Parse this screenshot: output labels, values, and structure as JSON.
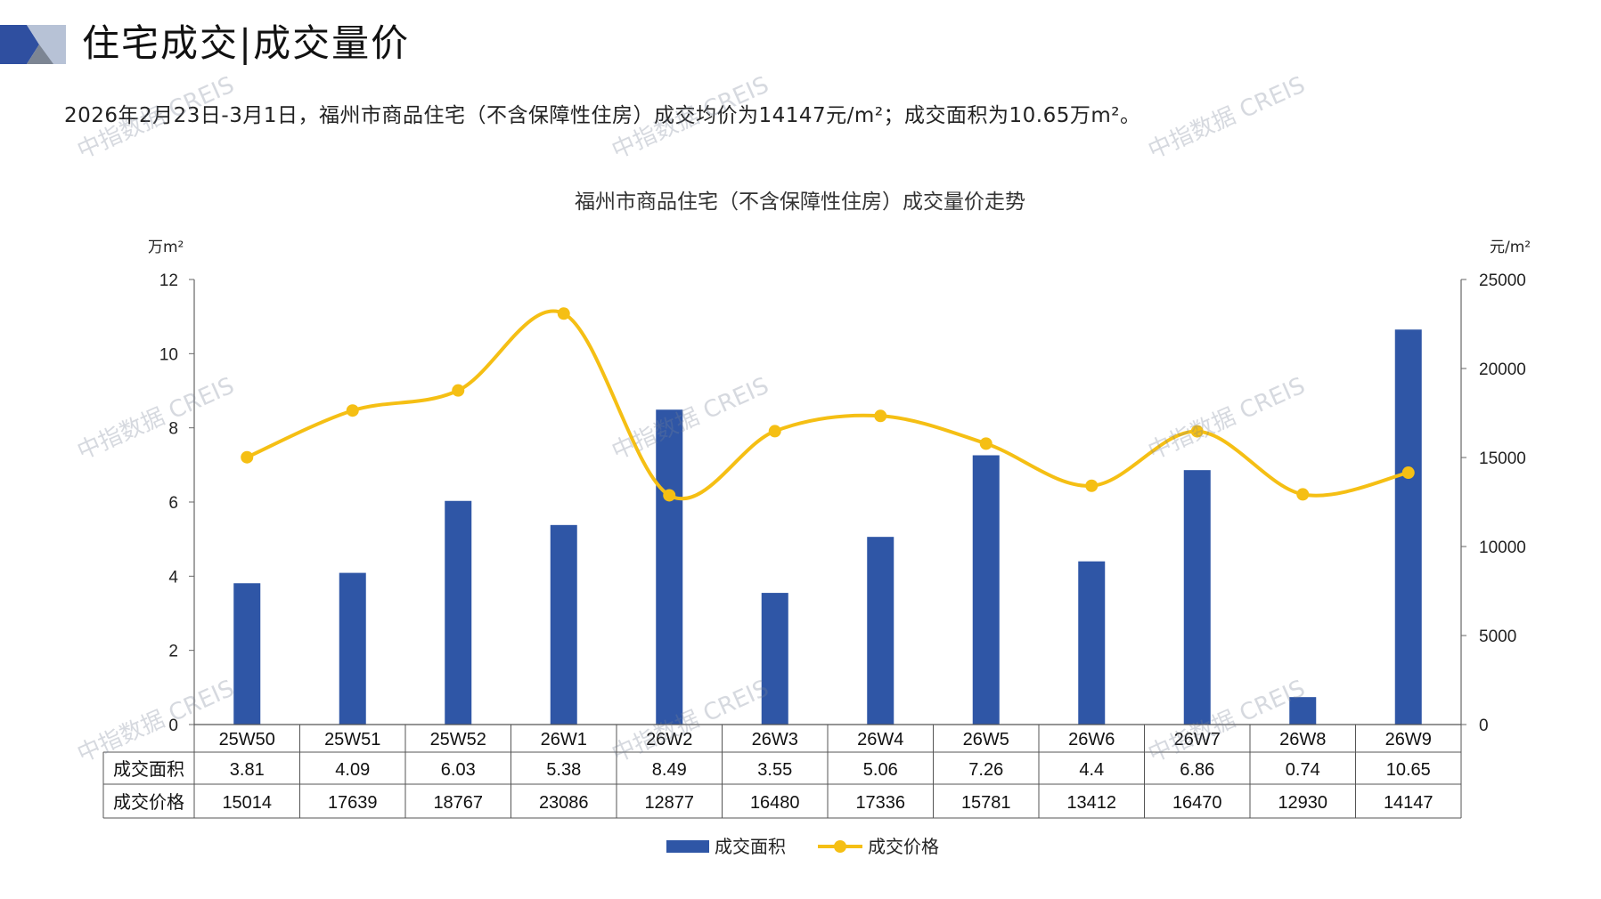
{
  "header": {
    "title": "住宅成交|成交量价"
  },
  "summary": {
    "text": "2026年2月23日-3月1日，福州市商品住宅（不含保障性住房）成交均价为14147元/m²；成交面积为10.65万m²。"
  },
  "watermark": {
    "text": "中指数据 CREIS"
  },
  "colors": {
    "bar": "#2F56A6",
    "line": "#F5BF14",
    "logo_dark": "#2F4FA0",
    "logo_light": "#B7C2D6"
  },
  "chart_data": {
    "type": "bar+line",
    "title": "福州市商品住宅（不含保障性住房）成交量价走势",
    "y_left_unit": "万m²",
    "y_right_unit": "元/m²",
    "ylim_left": [
      0,
      12
    ],
    "ylim_right": [
      0,
      25000
    ],
    "yticks_left": [
      "0",
      "2",
      "4",
      "6",
      "8",
      "10",
      "12"
    ],
    "yticks_right": [
      "0",
      "5000",
      "10000",
      "15000",
      "20000",
      "25000"
    ],
    "categories": [
      "25W50",
      "25W51",
      "25W52",
      "26W1",
      "26W2",
      "26W3",
      "26W4",
      "26W5",
      "26W6",
      "26W7",
      "26W8",
      "26W9"
    ],
    "series": [
      {
        "name": "成交面积",
        "type": "bar",
        "axis": "left",
        "values": [
          3.81,
          4.09,
          6.03,
          5.38,
          8.49,
          3.55,
          5.06,
          7.26,
          4.4,
          6.86,
          0.74,
          10.65
        ],
        "labels": [
          "3.81",
          "4.09",
          "6.03",
          "5.38",
          "8.49",
          "3.55",
          "5.06",
          "7.26",
          "4.4",
          "6.86",
          "0.74",
          "10.65"
        ]
      },
      {
        "name": "成交价格",
        "type": "line",
        "axis": "right",
        "values": [
          15014,
          17639,
          18767,
          23086,
          12877,
          16480,
          17336,
          15781,
          13412,
          16470,
          12930,
          14147
        ],
        "labels": [
          "15014",
          "17639",
          "18767",
          "23086",
          "12877",
          "16480",
          "17336",
          "15781",
          "13412",
          "16470",
          "12930",
          "14147"
        ]
      }
    ],
    "legend_position": "bottom-center",
    "grid": false
  }
}
